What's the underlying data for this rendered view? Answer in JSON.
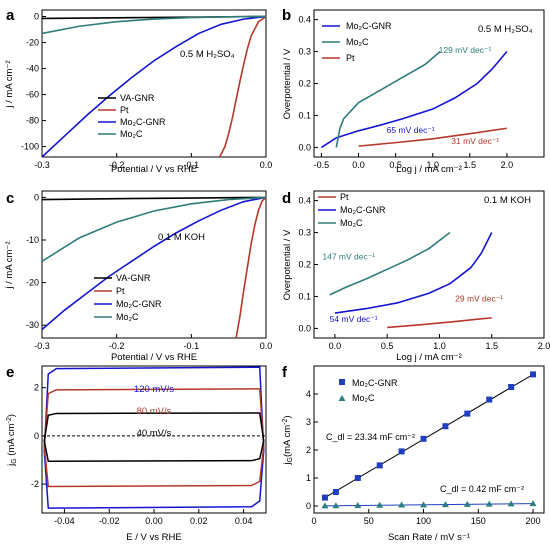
{
  "colors": {
    "black": "#000000",
    "red": "#b5382a",
    "blue": "#1414d2",
    "teal": "#2e7d7b",
    "square_blue": "#1f3fbf",
    "triangle_teal": "#2a8080"
  },
  "chart_data": [
    {
      "id": "a",
      "panel_label": "a",
      "type": "line",
      "xlabel": "Potential / V vs RHE",
      "ylabel": "j / mA cm⁻²",
      "xlim": [
        -0.3,
        0.0
      ],
      "ylim": [
        -108,
        5
      ],
      "xticks": [
        -0.3,
        -0.2,
        -0.1,
        0.0
      ],
      "xticklabels": [
        "-0.3",
        "-0.2",
        "-0.1",
        "0.0"
      ],
      "yticks": [
        -100,
        -80,
        -60,
        -40,
        -20,
        0
      ],
      "yticklabels": [
        "-100",
        "-80",
        "-60",
        "-40",
        "-20",
        "0"
      ],
      "annotation": "0.5 M H₂SO₄",
      "legend": [
        "VA-GNR",
        "Pt",
        "Mo₂C-GNR",
        "Mo₂C"
      ],
      "series": [
        {
          "name": "VA-GNR",
          "color": "#000000",
          "x": [
            -0.3,
            -0.2,
            -0.1,
            0.0
          ],
          "y": [
            -1.5,
            -1.0,
            -0.5,
            0
          ]
        },
        {
          "name": "Pt",
          "color": "#b5382a",
          "x": [
            -0.062,
            -0.055,
            -0.05,
            -0.045,
            -0.04,
            -0.035,
            -0.03,
            -0.025,
            -0.02,
            -0.01,
            0.0
          ],
          "y": [
            -108,
            -100,
            -90,
            -78,
            -64,
            -50,
            -37,
            -25,
            -15,
            -4,
            0
          ]
        },
        {
          "name": "Mo₂C-GNR",
          "color": "#1414d2",
          "x": [
            -0.3,
            -0.27,
            -0.24,
            -0.21,
            -0.18,
            -0.15,
            -0.12,
            -0.09,
            -0.06,
            -0.03,
            0.0
          ],
          "y": [
            -108,
            -92,
            -76,
            -61,
            -47,
            -34,
            -23,
            -13,
            -6,
            -2,
            0
          ]
        },
        {
          "name": "Mo₂C",
          "color": "#2e7d7b",
          "x": [
            -0.3,
            -0.25,
            -0.2,
            -0.15,
            -0.1,
            -0.05,
            0.0
          ],
          "y": [
            -13,
            -7.5,
            -4,
            -2,
            -0.8,
            -0.2,
            0
          ]
        }
      ]
    },
    {
      "id": "b",
      "panel_label": "b",
      "type": "line",
      "xlabel": "Log j / mA cm⁻²",
      "ylabel": "Overpotential / V",
      "xlim": [
        -0.6,
        2.5
      ],
      "ylim": [
        -0.03,
        0.43
      ],
      "xticks": [
        -0.5,
        0.0,
        0.5,
        1.0,
        1.5,
        2.0
      ],
      "xticklabels": [
        "-0.5",
        "0.0",
        "0.5",
        "1.0",
        "1.5",
        "2.0"
      ],
      "yticks": [
        0.0,
        0.1,
        0.2,
        0.3,
        0.4
      ],
      "yticklabels": [
        "0.0",
        "0.1",
        "0.2",
        "0.3",
        "0.4"
      ],
      "annotation": "0.5 M H₂SO₄",
      "legend": [
        "Mo₂C-GNR",
        "Mo₂C",
        "Pt"
      ],
      "tafel_labels": [
        {
          "text": "129 mV dec⁻¹",
          "color": "#2e7d7b",
          "x": 1.08,
          "y": 0.295
        },
        {
          "text": "65 mV dec⁻¹",
          "color": "#1414d2",
          "x": 0.38,
          "y": 0.045
        },
        {
          "text": "31 mV dec⁻¹",
          "color": "#b5382a",
          "x": 1.25,
          "y": 0.01
        }
      ],
      "series": [
        {
          "name": "Mo₂C-GNR",
          "color": "#1414d2",
          "x": [
            -0.5,
            -0.3,
            0.0,
            0.3,
            0.6,
            1.0,
            1.3,
            1.6,
            1.8,
            2.0
          ],
          "y": [
            0.0,
            0.03,
            0.052,
            0.07,
            0.09,
            0.12,
            0.155,
            0.2,
            0.245,
            0.3
          ]
        },
        {
          "name": "Mo₂C",
          "color": "#2e7d7b",
          "x": [
            -0.3,
            -0.25,
            -0.2,
            -0.1,
            0.0,
            0.3,
            0.6,
            0.9,
            1.1
          ],
          "y": [
            0.0,
            0.06,
            0.09,
            0.115,
            0.14,
            0.18,
            0.22,
            0.26,
            0.3
          ]
        },
        {
          "name": "Pt",
          "color": "#b5382a",
          "x": [
            0.0,
            0.5,
            1.0,
            1.5,
            2.0
          ],
          "y": [
            0.004,
            0.015,
            0.027,
            0.043,
            0.06
          ]
        }
      ]
    },
    {
      "id": "c",
      "panel_label": "c",
      "type": "line",
      "xlabel": "Potential / V vs RHE",
      "ylabel": "j / mA cm⁻²",
      "xlim": [
        -0.3,
        0.0
      ],
      "ylim": [
        -33,
        1.5
      ],
      "xticks": [
        -0.3,
        -0.2,
        -0.1,
        0.0
      ],
      "xticklabels": [
        "-0.3",
        "-0.2",
        "-0.1",
        "0.0"
      ],
      "yticks": [
        -30,
        -20,
        -10,
        0
      ],
      "yticklabels": [
        "-30",
        "-20",
        "-10",
        "0"
      ],
      "annotation": "0.1 M KOH",
      "legend": [
        "VA-GNR",
        "Pt",
        "Mo₂C-GNR",
        "Mo₂C"
      ],
      "series": [
        {
          "name": "VA-GNR",
          "color": "#000000",
          "x": [
            -0.3,
            -0.2,
            -0.1,
            0.0
          ],
          "y": [
            -0.5,
            -0.3,
            -0.15,
            0
          ]
        },
        {
          "name": "Pt",
          "color": "#b5382a",
          "x": [
            -0.04,
            -0.035,
            -0.03,
            -0.025,
            -0.02,
            -0.015,
            -0.01,
            -0.005,
            0.0
          ],
          "y": [
            -33,
            -28,
            -22,
            -16.5,
            -11,
            -6.5,
            -3,
            -0.8,
            0
          ]
        },
        {
          "name": "Mo₂C-GNR",
          "color": "#1414d2",
          "x": [
            -0.3,
            -0.27,
            -0.24,
            -0.21,
            -0.18,
            -0.15,
            -0.12,
            -0.09,
            -0.06,
            -0.03,
            0.0
          ],
          "y": [
            -31,
            -26.5,
            -22.5,
            -18.5,
            -15,
            -11.5,
            -8.3,
            -5.5,
            -3,
            -1,
            0
          ]
        },
        {
          "name": "Mo₂C",
          "color": "#2e7d7b",
          "x": [
            -0.3,
            -0.25,
            -0.2,
            -0.15,
            -0.1,
            -0.05,
            0.0
          ],
          "y": [
            -15,
            -9.5,
            -5.8,
            -3.2,
            -1.5,
            -0.5,
            0
          ]
        }
      ]
    },
    {
      "id": "d",
      "panel_label": "d",
      "type": "line",
      "xlabel": "Log j / mA cm⁻²",
      "ylabel": "Overpotential / V",
      "xlim": [
        -0.2,
        2.0
      ],
      "ylim": [
        -0.03,
        0.43
      ],
      "xticks": [
        0.0,
        0.5,
        1.0,
        1.5,
        2.0
      ],
      "xticklabels": [
        "0.0",
        "0.5",
        "1.0",
        "1.5",
        "2.0"
      ],
      "yticks": [
        0.0,
        0.1,
        0.2,
        0.3,
        0.4
      ],
      "yticklabels": [
        "0.0",
        "0.1",
        "0.2",
        "0.3",
        "0.4"
      ],
      "annotation": "0.1 M KOH",
      "legend": [
        "Pt",
        "Mo₂C-GNR",
        "Mo₂C"
      ],
      "tafel_labels": [
        {
          "text": "147 mV dec⁻¹",
          "color": "#2e7d7b",
          "x": -0.12,
          "y": 0.215
        },
        {
          "text": "54 mV dec⁻¹",
          "color": "#1414d2",
          "x": -0.05,
          "y": 0.02
        },
        {
          "text": "29 mV dec⁻¹",
          "color": "#b5382a",
          "x": 1.15,
          "y": 0.085
        }
      ],
      "series": [
        {
          "name": "Pt",
          "color": "#b5382a",
          "x": [
            0.5,
            0.8,
            1.1,
            1.4,
            1.5
          ],
          "y": [
            0.003,
            0.011,
            0.02,
            0.03,
            0.033
          ]
        },
        {
          "name": "Mo₂C-GNR",
          "color": "#1414d2",
          "x": [
            0.0,
            0.3,
            0.6,
            0.9,
            1.1,
            1.3,
            1.4,
            1.5
          ],
          "y": [
            0.048,
            0.062,
            0.08,
            0.11,
            0.14,
            0.19,
            0.235,
            0.3
          ]
        },
        {
          "name": "Mo₂C",
          "color": "#2e7d7b",
          "x": [
            -0.05,
            0.1,
            0.3,
            0.5,
            0.7,
            0.9,
            1.1
          ],
          "y": [
            0.105,
            0.128,
            0.155,
            0.185,
            0.215,
            0.25,
            0.3
          ]
        }
      ]
    },
    {
      "id": "e",
      "panel_label": "e",
      "type": "line",
      "xlabel": "E / V vs RHE",
      "ylabel": "j_G (mA cm⁻²)",
      "xlim": [
        -0.05,
        0.05
      ],
      "ylim": [
        -3.2,
        2.9
      ],
      "xticks": [
        -0.04,
        -0.02,
        0.0,
        0.02,
        0.04
      ],
      "xticklabels": [
        "-0.04",
        "-0.02",
        "0.00",
        "0.02",
        "0.04"
      ],
      "yticks": [
        -2,
        0,
        2
      ],
      "yticklabels": [
        "-2",
        "0",
        "2"
      ],
      "labels": [
        {
          "text": "120 mV/s",
          "color": "#1414d2"
        },
        {
          "text": "80 mV/s",
          "color": "#b5382a"
        },
        {
          "text": "40 mV/s",
          "color": "#000000"
        }
      ],
      "series": [
        {
          "name": "120 mV/s",
          "color": "#1414d2",
          "upper": 2.85,
          "lower": -3.0
        },
        {
          "name": "80 mV/s",
          "color": "#b5382a",
          "upper": 1.95,
          "lower": -2.1
        },
        {
          "name": "40 mV/s",
          "color": "#000000",
          "upper": 0.95,
          "lower": -1.05
        }
      ]
    },
    {
      "id": "f",
      "panel_label": "f",
      "type": "scatter",
      "xlabel": "Scan Rate / mV s⁻¹",
      "ylabel": "j_G (mA cm⁻²)",
      "xlim": [
        0,
        210
      ],
      "ylim": [
        -0.25,
        5.0
      ],
      "xticks": [
        0,
        50,
        100,
        150,
        200
      ],
      "xticklabels": [
        "0",
        "50",
        "100",
        "150",
        "200"
      ],
      "yticks": [
        0,
        1,
        2,
        3,
        4
      ],
      "yticklabels": [
        "0",
        "1",
        "2",
        "3",
        "4"
      ],
      "legend": [
        "Mo₂C-GNR",
        "Mo₂C"
      ],
      "annotations": [
        "C_dl = 23.34 mF cm⁻²",
        "C_dl = 0.42 mF cm⁻²"
      ],
      "series": [
        {
          "name": "Mo₂C-GNR",
          "marker": "square",
          "color": "#1f3fbf",
          "x": [
            10,
            20,
            40,
            60,
            80,
            100,
            120,
            140,
            160,
            180,
            200
          ],
          "y": [
            0.3,
            0.5,
            1.0,
            1.45,
            1.95,
            2.4,
            2.85,
            3.3,
            3.8,
            4.25,
            4.7
          ]
        },
        {
          "name": "Mo₂C",
          "marker": "triangle",
          "color": "#2a8080",
          "x": [
            10,
            20,
            40,
            60,
            80,
            100,
            120,
            140,
            160,
            180,
            200
          ],
          "y": [
            0.004,
            0.008,
            0.017,
            0.025,
            0.034,
            0.042,
            0.05,
            0.059,
            0.067,
            0.076,
            0.084
          ]
        }
      ]
    }
  ]
}
